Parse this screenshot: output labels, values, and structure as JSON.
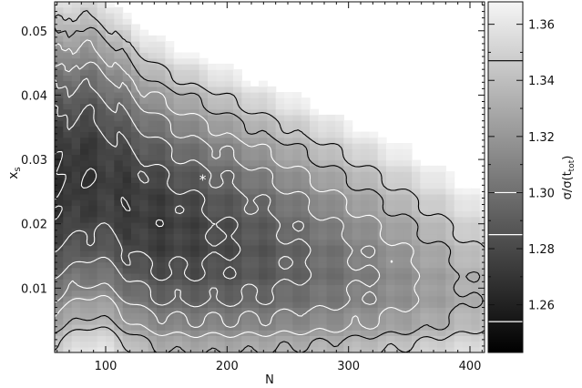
{
  "chart_data": {
    "type": "heatmap",
    "title": "",
    "xlabel": "N",
    "ylabel": "x_s",
    "ylabel_main": "x",
    "ylabel_sub": "s",
    "xlim": [
      58,
      412
    ],
    "ylim": [
      0,
      0.0545
    ],
    "x_ticks": [
      {
        "value": 100,
        "label": "100"
      },
      {
        "value": 200,
        "label": "200"
      },
      {
        "value": 300,
        "label": "300"
      },
      {
        "value": 400,
        "label": "400"
      }
    ],
    "y_ticks": [
      {
        "value": 0.01,
        "label": "0.01"
      },
      {
        "value": 0.02,
        "label": "0.02"
      },
      {
        "value": 0.03,
        "label": "0.03"
      },
      {
        "value": 0.04,
        "label": "0.04"
      },
      {
        "value": 0.05,
        "label": "0.05"
      }
    ],
    "colorbar": {
      "label": "σ/σ(t_tot)",
      "label_main": "σ/σ(t",
      "label_sub": "tot",
      "label_end": ")",
      "range": [
        1.243,
        1.368
      ],
      "colormap": "grayscale, black = low, white = high",
      "ticks": [
        {
          "value": 1.26,
          "label": "1.26"
        },
        {
          "value": 1.28,
          "label": "1.28"
        },
        {
          "value": 1.3,
          "label": "1.30"
        },
        {
          "value": 1.32,
          "label": "1.32"
        },
        {
          "value": 1.34,
          "label": "1.34"
        },
        {
          "value": 1.36,
          "label": "1.36"
        }
      ],
      "contour_levels": [
        1.254,
        1.285,
        1.3,
        1.347
      ],
      "contour_colors": [
        "#ffffff",
        "#ffffff",
        "#ffffff",
        "#000000"
      ]
    },
    "contour_levels_white": [
      1.248,
      1.262,
      1.275,
      1.288,
      1.301,
      1.314
    ],
    "contour_levels_black": [
      1.327,
      1.34
    ],
    "minimum_marker": {
      "N": 180,
      "x_s": 0.0268,
      "symbol": "*"
    },
    "colors": {
      "contour_light": "#ffffff",
      "contour_dark": "#000000",
      "marker": "#ffffff"
    }
  }
}
